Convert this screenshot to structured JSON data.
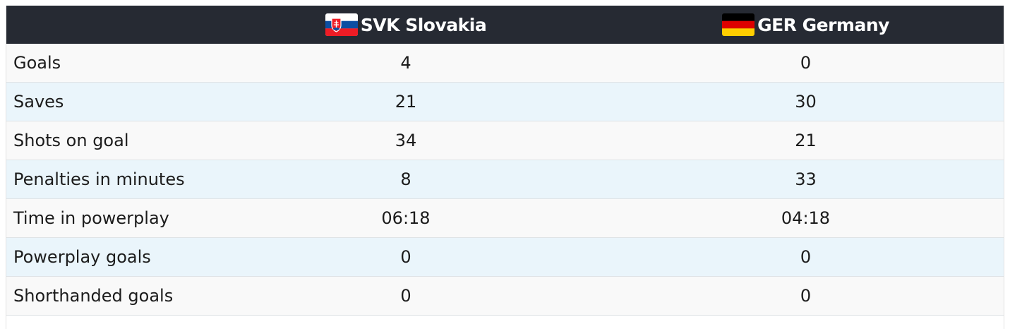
{
  "table": {
    "teams": [
      "SVK Slovakia",
      "GER Germany"
    ],
    "rows": [
      [
        "Goals",
        "4",
        "0"
      ],
      [
        "Saves",
        "21",
        "30"
      ],
      [
        "Shots on goal",
        "34",
        "21"
      ],
      [
        "Penalties in minutes",
        "8",
        "33"
      ],
      [
        "Time in powerplay",
        "06:18",
        "04:18"
      ],
      [
        "Powerplay goals",
        "0",
        "0"
      ],
      [
        "Shorthanded goals",
        "0",
        "0"
      ]
    ]
  }
}
